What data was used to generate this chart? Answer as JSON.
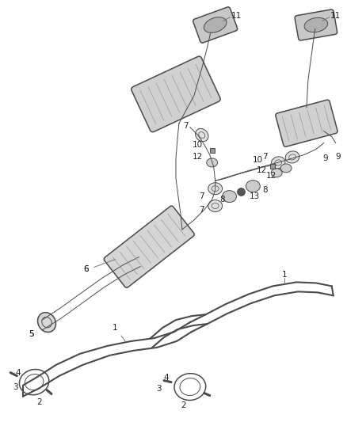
{
  "background_color": "#ffffff",
  "line_color": "#4a4a4a",
  "label_color": "#222222",
  "fig_width": 4.38,
  "fig_height": 5.33,
  "dpi": 100
}
